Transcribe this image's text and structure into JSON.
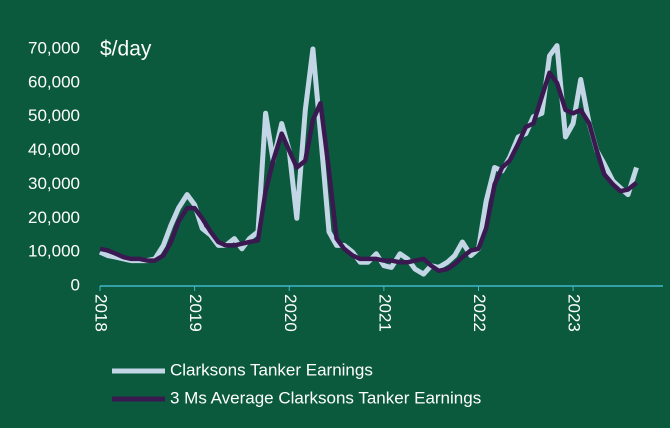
{
  "chart_data": {
    "type": "line",
    "annotation": "$/day",
    "x": [
      2018,
      2018.08,
      2018.17,
      2018.25,
      2018.33,
      2018.42,
      2018.5,
      2018.58,
      2018.67,
      2018.75,
      2018.83,
      2018.92,
      2019,
      2019.08,
      2019.17,
      2019.25,
      2019.33,
      2019.42,
      2019.5,
      2019.58,
      2019.67,
      2019.75,
      2019.83,
      2019.92,
      2020,
      2020.08,
      2020.17,
      2020.25,
      2020.33,
      2020.42,
      2020.5,
      2020.58,
      2020.67,
      2020.75,
      2020.83,
      2020.92,
      2021,
      2021.08,
      2021.17,
      2021.25,
      2021.33,
      2021.42,
      2021.5,
      2021.58,
      2021.67,
      2021.75,
      2021.83,
      2021.92,
      2022,
      2022.08,
      2022.17,
      2022.25,
      2022.33,
      2022.42,
      2022.5,
      2022.58,
      2022.67,
      2022.75,
      2022.83,
      2022.92,
      2023,
      2023.08,
      2023.17,
      2023.25,
      2023.33,
      2023.42,
      2023.5,
      2023.58,
      2023.67
    ],
    "series": [
      {
        "name": "Clarksons Tanker Earnings",
        "color": "#c3d6e6",
        "values": [
          10000,
          9000,
          8500,
          8000,
          7500,
          7500,
          7500,
          8000,
          12000,
          18000,
          23000,
          27000,
          24000,
          17000,
          15000,
          12000,
          12000,
          14000,
          11000,
          14000,
          16000,
          51000,
          37000,
          48000,
          40000,
          20000,
          52000,
          70000,
          45000,
          16000,
          12000,
          12000,
          10000,
          7000,
          7000,
          9500,
          6000,
          5500,
          9500,
          8000,
          5000,
          3500,
          6000,
          5500,
          7000,
          9000,
          13000,
          9000,
          11000,
          25000,
          35000,
          34000,
          38000,
          44000,
          45000,
          50000,
          51000,
          68000,
          71000,
          44000,
          48000,
          61000,
          48000,
          40000,
          36000,
          31000,
          29000,
          27000,
          35000
        ]
      },
      {
        "name": "3 Ms Average Clarksons Tanker Earnings",
        "color": "#3a1850",
        "values": [
          11000,
          10500,
          9500,
          8500,
          8000,
          8000,
          7500,
          7500,
          9000,
          13000,
          19000,
          23000,
          23000,
          20000,
          16000,
          13000,
          12000,
          12000,
          12500,
          13000,
          13500,
          28000,
          37000,
          45000,
          40000,
          35000,
          37000,
          49000,
          54000,
          34000,
          14000,
          11000,
          9000,
          8000,
          8000,
          8000,
          7500,
          7500,
          7000,
          7000,
          7500,
          8000,
          6000,
          4500,
          5000,
          6500,
          8500,
          10500,
          11000,
          17000,
          30000,
          35000,
          37000,
          42000,
          47000,
          48000,
          56000,
          63000,
          60000,
          52000,
          51000,
          52000,
          48000,
          40000,
          33000,
          30000,
          28000,
          28500,
          30500
        ]
      }
    ],
    "xlim": [
      2018,
      2023.95
    ],
    "xticks": [
      2018,
      2019,
      2020,
      2021,
      2022,
      2023
    ],
    "ylim": [
      0,
      70000
    ],
    "yticks": [
      0,
      {
        "value": 10000,
        "label": "10,000"
      },
      {
        "value": 20000,
        "label": "20,000"
      },
      {
        "value": 30000,
        "label": "30,000"
      },
      {
        "value": 40000,
        "label": "40,000"
      },
      {
        "value": 50000,
        "label": "50,000"
      },
      {
        "value": 60000,
        "label": "60,000"
      },
      {
        "value": 70000,
        "label": "70,000"
      }
    ],
    "zero_line_color": "#3fb8c8"
  }
}
